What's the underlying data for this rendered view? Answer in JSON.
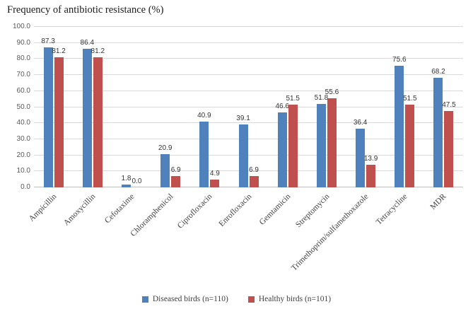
{
  "chart_data": {
    "type": "bar",
    "title": "Frequency of antibiotic resistance (%)",
    "categories": [
      "Ampicillin",
      "Amoxycillin",
      "Cefotaxime",
      "Chloramphenicol",
      "Ciprofloxacin",
      "Enrofloxacin",
      "Gemtamicin",
      "Streptomycin",
      "Trimethoprim/sulfamethoxazole",
      "Tetracycline",
      "MDR"
    ],
    "series": [
      {
        "name": "Diseased birds (n=110)",
        "color": "#4F81BD",
        "values": [
          87.3,
          86.4,
          1.8,
          20.9,
          40.9,
          39.1,
          46.6,
          51.8,
          36.4,
          75.6,
          68.2
        ]
      },
      {
        "name": "Healthy birds (n=101)",
        "color": "#C0504D",
        "values": [
          81.2,
          81.2,
          0.0,
          6.9,
          4.9,
          6.9,
          51.5,
          55.6,
          13.9,
          51.5,
          47.5
        ]
      }
    ],
    "ylim": [
      0,
      100
    ],
    "ytick_step": 10,
    "ytick_labels": [
      "0.0",
      "10.0",
      "20.0",
      "30.0",
      "40.0",
      "50.0",
      "60.0",
      "70.0",
      "80.0",
      "90.0",
      "100.0"
    ],
    "grid": true,
    "legend_position": "bottom",
    "colors": {
      "gridline": "#d9d9d9",
      "axis_line": "#bfbfbf",
      "tick_text": "#595959",
      "label_text": "#404040"
    }
  }
}
